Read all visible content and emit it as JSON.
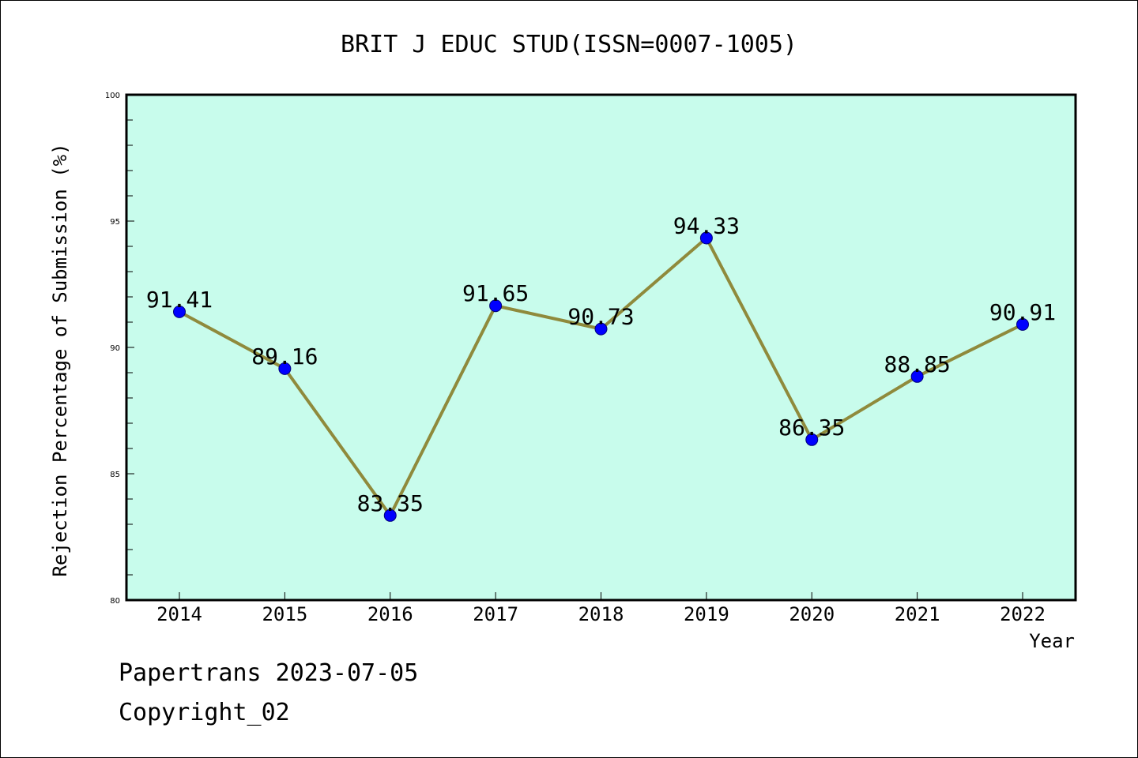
{
  "chart_data": {
    "type": "line",
    "title": "BRIT J EDUC STUD(ISSN=0007-1005)",
    "xlabel": "Year",
    "ylabel": "Rejection Percentage of Submission (%)",
    "categories": [
      "2014",
      "2015",
      "2016",
      "2017",
      "2018",
      "2019",
      "2020",
      "2021",
      "2022"
    ],
    "series": [
      {
        "values": [
          91.41,
          89.16,
          83.35,
          91.65,
          90.73,
          94.33,
          86.35,
          88.85,
          90.91
        ],
        "labels": [
          "91.41",
          "89.16",
          "83.35",
          "91.65",
          "90.73",
          "94.33",
          "86.35",
          "88.85",
          "90.91"
        ]
      }
    ],
    "ylim": [
      80,
      100
    ],
    "yticks": [
      80,
      85,
      90,
      95,
      100
    ],
    "colors": {
      "plot_background": "#c8fcec",
      "line": "#8f8a3c",
      "marker": "#0000ff"
    },
    "grid": false
  },
  "footer": {
    "line1": "Papertrans 2023-07-05",
    "line2": "Copyright_02"
  }
}
